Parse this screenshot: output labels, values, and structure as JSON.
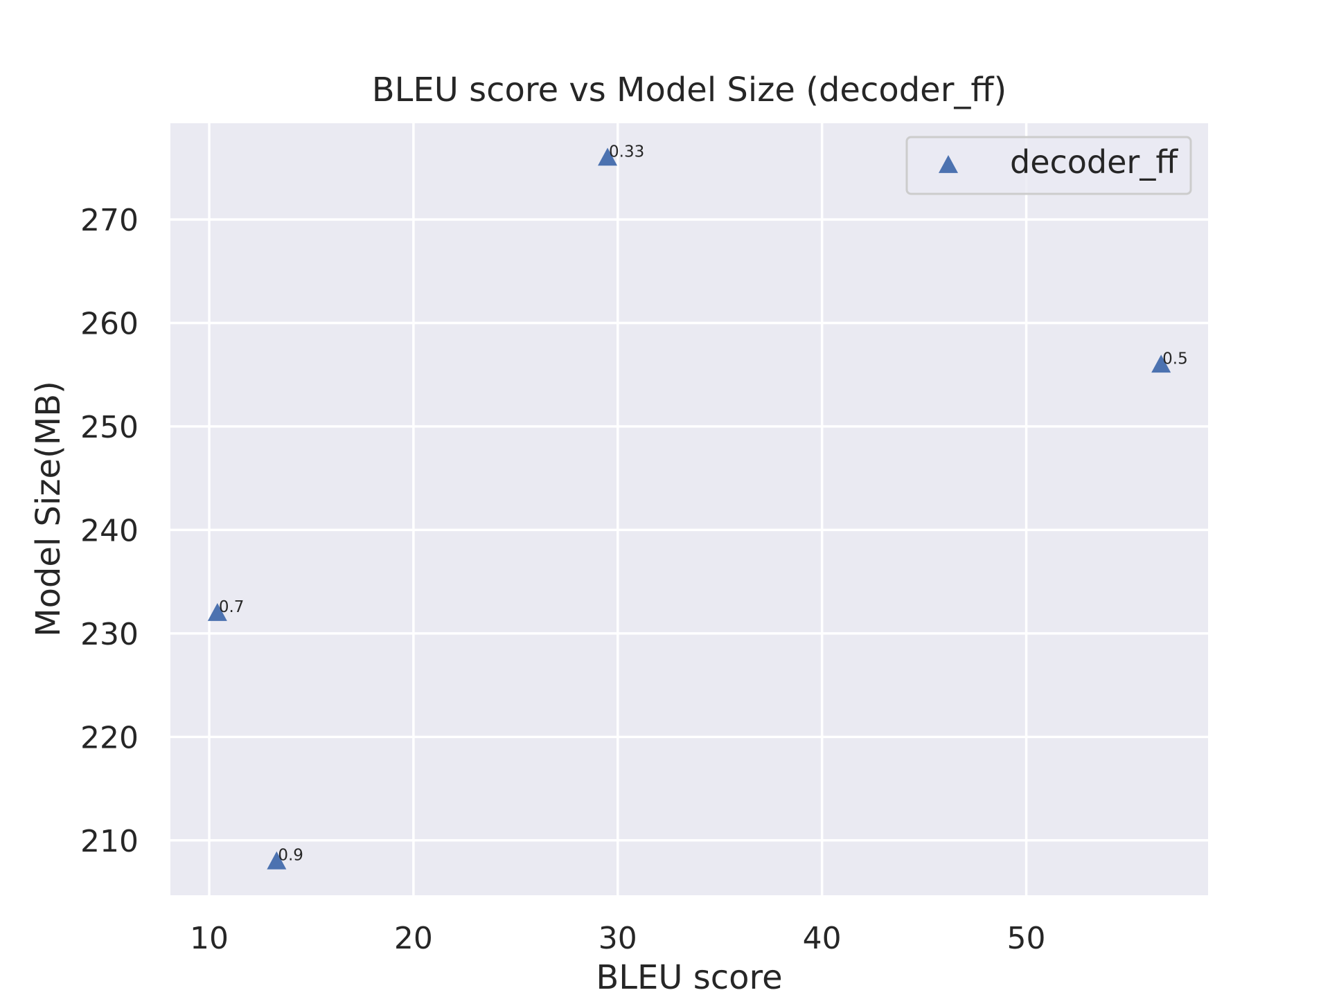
{
  "chart_data": {
    "type": "scatter",
    "title": "BLEU score vs Model Size (decoder_ff)",
    "xlabel": "BLEU score",
    "ylabel": "Model Size(MB)",
    "xlim": [
      8.1,
      58.9
    ],
    "ylim": [
      204.7,
      279.3
    ],
    "xticks": [
      10,
      20,
      30,
      40,
      50
    ],
    "yticks": [
      210,
      220,
      230,
      240,
      250,
      260,
      270
    ],
    "grid": true,
    "legend_position": "upper right",
    "colors": {
      "background": "#EAEAF2",
      "grid": "#FFFFFF",
      "marker": "#4C72B0"
    },
    "series": [
      {
        "name": "decoder_ff",
        "marker": "triangle-up",
        "points": [
          {
            "x": 29.5,
            "y": 276,
            "label": "0.33"
          },
          {
            "x": 56.6,
            "y": 256,
            "label": "0.5"
          },
          {
            "x": 10.4,
            "y": 232,
            "label": "0.7"
          },
          {
            "x": 13.3,
            "y": 208,
            "label": "0.9"
          }
        ]
      }
    ]
  }
}
